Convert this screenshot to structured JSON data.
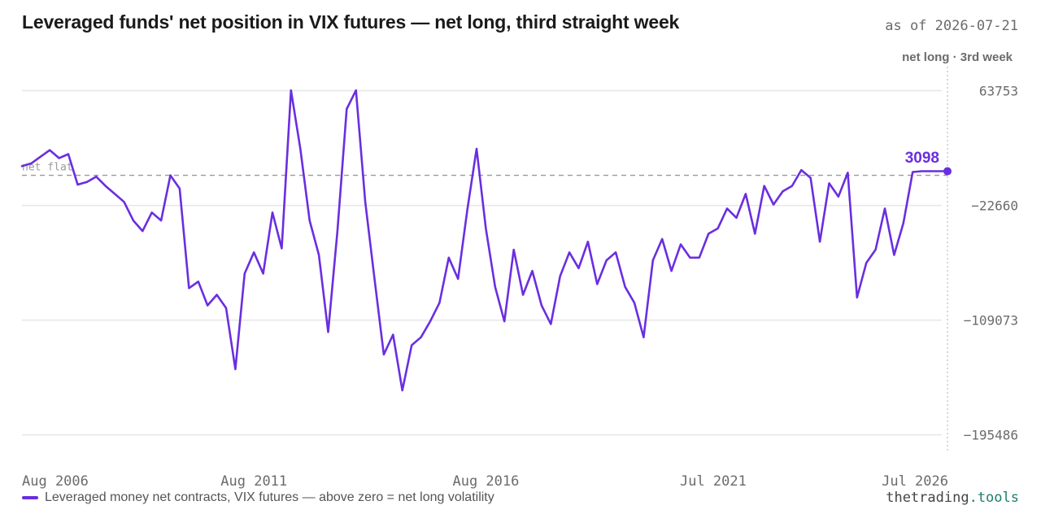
{
  "header": {
    "title": "Leveraged funds' net position in VIX futures — net long, third straight week",
    "as_of": "as of 2026-07-21"
  },
  "annotations": {
    "status": "net long · 3rd week",
    "zero_label": "net flat",
    "last_value": "3098"
  },
  "legend": {
    "label": "Leveraged money net contracts, VIX futures — above zero = net long volatility"
  },
  "brand": {
    "name": "thetrading",
    "tld": ".tools"
  },
  "colors": {
    "series": "#6a2ee0",
    "grid": "#e6e6e6",
    "zero_line": "#9a9a9a",
    "axis_text": "#6b6b6b",
    "brand_accent": "#1a7f6b"
  },
  "chart_data": {
    "type": "line",
    "title": "Leveraged funds' net position in VIX futures — net long, third straight week",
    "xlabel": "",
    "ylabel": "",
    "x_tick_labels": [
      "Aug 2006",
      "Aug 2011",
      "Aug 2016",
      "Jul 2021",
      "Jul 2026"
    ],
    "x_ticks": [
      2006.6,
      2011.6,
      2016.6,
      2021.5,
      2026.5
    ],
    "y_ticks": [
      63753,
      -22660,
      -109073,
      -195486
    ],
    "y_tick_labels": [
      "63753",
      "−22660",
      "−109073",
      "−195486"
    ],
    "xlim": [
      2006.6,
      2026.55
    ],
    "ylim": [
      -211000,
      80000
    ],
    "grid": true,
    "legend_position": "bottom-left",
    "reference_line": {
      "y": 0,
      "label": "net flat",
      "style": "dashed"
    },
    "last_point": {
      "x": 2026.55,
      "y": 3098,
      "label": "3098"
    },
    "series": [
      {
        "name": "Leveraged money net contracts, VIX futures — above zero = net long volatility",
        "x": [
          2006.6,
          2006.8,
          2007.0,
          2007.2,
          2007.4,
          2007.6,
          2007.8,
          2008.0,
          2008.2,
          2008.4,
          2008.6,
          2008.8,
          2009.0,
          2009.2,
          2009.4,
          2009.6,
          2009.8,
          2010.0,
          2010.2,
          2010.4,
          2010.6,
          2010.8,
          2011.0,
          2011.2,
          2011.4,
          2011.6,
          2011.8,
          2012.0,
          2012.2,
          2012.4,
          2012.6,
          2012.8,
          2013.0,
          2013.2,
          2013.4,
          2013.6,
          2013.8,
          2014.0,
          2014.2,
          2014.4,
          2014.6,
          2014.8,
          2015.0,
          2015.2,
          2015.4,
          2015.6,
          2015.8,
          2016.0,
          2016.2,
          2016.4,
          2016.6,
          2016.8,
          2017.0,
          2017.2,
          2017.4,
          2017.6,
          2017.8,
          2018.0,
          2018.2,
          2018.4,
          2018.6,
          2018.8,
          2019.0,
          2019.2,
          2019.4,
          2019.6,
          2019.8,
          2020.0,
          2020.2,
          2020.4,
          2020.6,
          2020.8,
          2021.0,
          2021.2,
          2021.4,
          2021.6,
          2021.8,
          2022.0,
          2022.2,
          2022.4,
          2022.6,
          2022.8,
          2023.0,
          2023.2,
          2023.4,
          2023.6,
          2023.8,
          2024.0,
          2024.2,
          2024.4,
          2024.6,
          2024.8,
          2025.0,
          2025.2,
          2025.4,
          2025.6,
          2025.8,
          2026.0,
          2026.2,
          2026.4,
          2026.55
        ],
        "values": [
          7000,
          9000,
          14000,
          19000,
          13000,
          16000,
          -7000,
          -5000,
          -1000,
          -8000,
          -14000,
          -20000,
          -34000,
          -42000,
          -28000,
          -34000,
          0,
          -10000,
          -85000,
          -80000,
          -98000,
          -90000,
          -100000,
          -146000,
          -74000,
          -58000,
          -74000,
          -28000,
          -55000,
          64000,
          20000,
          -34000,
          -60000,
          -118000,
          -42000,
          50000,
          64000,
          -20000,
          -78000,
          -135000,
          -120000,
          -162000,
          -128000,
          -122000,
          -110000,
          -96000,
          -62000,
          -78000,
          -26000,
          20000,
          -40000,
          -84000,
          -110000,
          -56000,
          -90000,
          -72000,
          -98000,
          -112000,
          -76000,
          -58000,
          -70000,
          -50000,
          -82000,
          -64000,
          -58000,
          -84000,
          -96000,
          -122000,
          -64000,
          -48000,
          -72000,
          -52000,
          -62000,
          -62000,
          -44000,
          -40000,
          -25000,
          -32000,
          -14000,
          -44000,
          -8000,
          -22000,
          -12000,
          -8000,
          4000,
          -2000,
          -50000,
          -6000,
          -16000,
          2000,
          -92000,
          -66000,
          -56000,
          -25000,
          -60000,
          -36000,
          2500,
          3098,
          3098,
          3098,
          3098
        ]
      }
    ]
  }
}
